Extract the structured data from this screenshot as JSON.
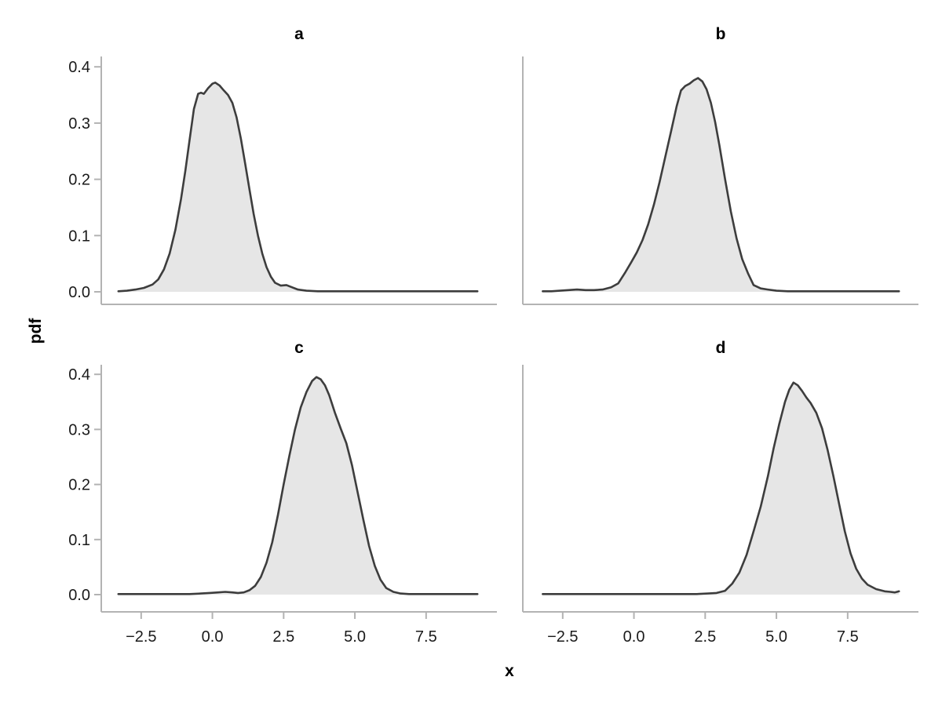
{
  "figure": {
    "xlabel": "x",
    "ylabel": "pdf",
    "background": "#ffffff"
  },
  "style": {
    "curve_stroke": "#3d3d3d",
    "curve_fill": "#e6e6e6",
    "axis_color": "#b3b3b3",
    "tick_label_color": "#1a1a1a",
    "title_color": "#000000"
  },
  "axes": {
    "x_range": [
      -3.9,
      10.0
    ],
    "y_range": [
      -0.022,
      0.418
    ],
    "x_ticks": [
      -2.5,
      0.0,
      2.5,
      5.0,
      7.5
    ],
    "x_tick_labels": [
      "−2.5",
      "0.0",
      "2.5",
      "5.0",
      "7.5"
    ],
    "y_ticks": [
      0.0,
      0.1,
      0.2,
      0.3,
      0.4
    ],
    "y_tick_labels": [
      "0.0",
      "0.1",
      "0.2",
      "0.3",
      "0.4"
    ],
    "grid": false,
    "legend": "none"
  },
  "chart_data": [
    {
      "type": "area",
      "title": "a",
      "xlabel": "x",
      "ylabel": "pdf",
      "x": [
        -3.3,
        -3.0,
        -2.7,
        -2.4,
        -2.1,
        -1.9,
        -1.7,
        -1.5,
        -1.3,
        -1.1,
        -0.95,
        -0.8,
        -0.65,
        -0.5,
        -0.4,
        -0.3,
        -0.15,
        0.0,
        0.1,
        0.25,
        0.4,
        0.55,
        0.7,
        0.85,
        1.0,
        1.15,
        1.3,
        1.45,
        1.6,
        1.75,
        1.9,
        2.05,
        2.2,
        2.4,
        2.6,
        2.8,
        3.0,
        3.3,
        3.7,
        4.2,
        5.0,
        6.0,
        7.0,
        8.0,
        9.3
      ],
      "y": [
        0.001,
        0.002,
        0.004,
        0.007,
        0.013,
        0.022,
        0.04,
        0.068,
        0.11,
        0.165,
        0.215,
        0.27,
        0.325,
        0.352,
        0.354,
        0.352,
        0.362,
        0.37,
        0.372,
        0.367,
        0.358,
        0.35,
        0.336,
        0.31,
        0.272,
        0.228,
        0.182,
        0.138,
        0.1,
        0.068,
        0.044,
        0.027,
        0.016,
        0.011,
        0.012,
        0.008,
        0.004,
        0.002,
        0.001,
        0.001,
        0.001,
        0.001,
        0.001,
        0.001,
        0.001
      ]
    },
    {
      "type": "area",
      "title": "b",
      "xlabel": "x",
      "ylabel": "pdf",
      "x": [
        -3.2,
        -2.9,
        -2.6,
        -2.3,
        -2.0,
        -1.7,
        -1.4,
        -1.1,
        -0.8,
        -0.55,
        -0.3,
        -0.1,
        0.1,
        0.3,
        0.5,
        0.7,
        0.9,
        1.1,
        1.3,
        1.5,
        1.65,
        1.8,
        1.95,
        2.1,
        2.25,
        2.4,
        2.55,
        2.7,
        2.85,
        3.0,
        3.2,
        3.4,
        3.6,
        3.8,
        4.0,
        4.2,
        4.45,
        4.7,
        5.0,
        5.4,
        5.9,
        6.5,
        7.5,
        8.5,
        9.3
      ],
      "y": [
        0.001,
        0.001,
        0.002,
        0.003,
        0.004,
        0.003,
        0.003,
        0.004,
        0.008,
        0.015,
        0.035,
        0.052,
        0.07,
        0.092,
        0.12,
        0.155,
        0.195,
        0.24,
        0.285,
        0.33,
        0.358,
        0.366,
        0.37,
        0.376,
        0.38,
        0.374,
        0.36,
        0.336,
        0.302,
        0.26,
        0.2,
        0.143,
        0.095,
        0.058,
        0.033,
        0.012,
        0.006,
        0.004,
        0.002,
        0.001,
        0.001,
        0.001,
        0.001,
        0.001,
        0.001
      ]
    },
    {
      "type": "area",
      "title": "c",
      "xlabel": "x",
      "ylabel": "pdf",
      "x": [
        -3.3,
        -2.8,
        -2.3,
        -1.8,
        -1.3,
        -0.8,
        -0.4,
        -0.1,
        0.2,
        0.45,
        0.7,
        0.9,
        1.1,
        1.3,
        1.5,
        1.7,
        1.9,
        2.1,
        2.3,
        2.5,
        2.7,
        2.9,
        3.1,
        3.3,
        3.5,
        3.65,
        3.8,
        3.95,
        4.1,
        4.3,
        4.5,
        4.7,
        4.9,
        5.1,
        5.3,
        5.5,
        5.7,
        5.9,
        6.1,
        6.35,
        6.6,
        6.9,
        7.3,
        8.0,
        9.3
      ],
      "y": [
        0.001,
        0.001,
        0.001,
        0.001,
        0.001,
        0.001,
        0.002,
        0.003,
        0.004,
        0.005,
        0.004,
        0.003,
        0.004,
        0.008,
        0.016,
        0.032,
        0.058,
        0.095,
        0.145,
        0.2,
        0.252,
        0.3,
        0.34,
        0.368,
        0.388,
        0.395,
        0.391,
        0.38,
        0.362,
        0.33,
        0.302,
        0.275,
        0.235,
        0.185,
        0.135,
        0.088,
        0.052,
        0.027,
        0.012,
        0.005,
        0.002,
        0.001,
        0.001,
        0.001,
        0.001
      ]
    },
    {
      "type": "area",
      "title": "d",
      "xlabel": "x",
      "ylabel": "pdf",
      "x": [
        -3.2,
        -2.7,
        -2.2,
        -1.7,
        -1.2,
        -0.7,
        -0.2,
        0.3,
        0.8,
        1.3,
        1.8,
        2.2,
        2.6,
        2.9,
        3.2,
        3.45,
        3.7,
        3.95,
        4.2,
        4.45,
        4.7,
        4.9,
        5.1,
        5.3,
        5.45,
        5.6,
        5.75,
        5.9,
        6.05,
        6.2,
        6.4,
        6.6,
        6.8,
        7.0,
        7.2,
        7.4,
        7.6,
        7.8,
        8.0,
        8.2,
        8.5,
        8.8,
        9.0,
        9.15,
        9.3
      ],
      "y": [
        0.001,
        0.001,
        0.001,
        0.001,
        0.001,
        0.001,
        0.001,
        0.001,
        0.001,
        0.001,
        0.001,
        0.001,
        0.002,
        0.003,
        0.007,
        0.02,
        0.04,
        0.072,
        0.115,
        0.16,
        0.215,
        0.265,
        0.31,
        0.35,
        0.372,
        0.385,
        0.38,
        0.37,
        0.358,
        0.348,
        0.33,
        0.302,
        0.262,
        0.215,
        0.165,
        0.115,
        0.075,
        0.047,
        0.029,
        0.018,
        0.01,
        0.006,
        0.005,
        0.004,
        0.006
      ]
    }
  ]
}
